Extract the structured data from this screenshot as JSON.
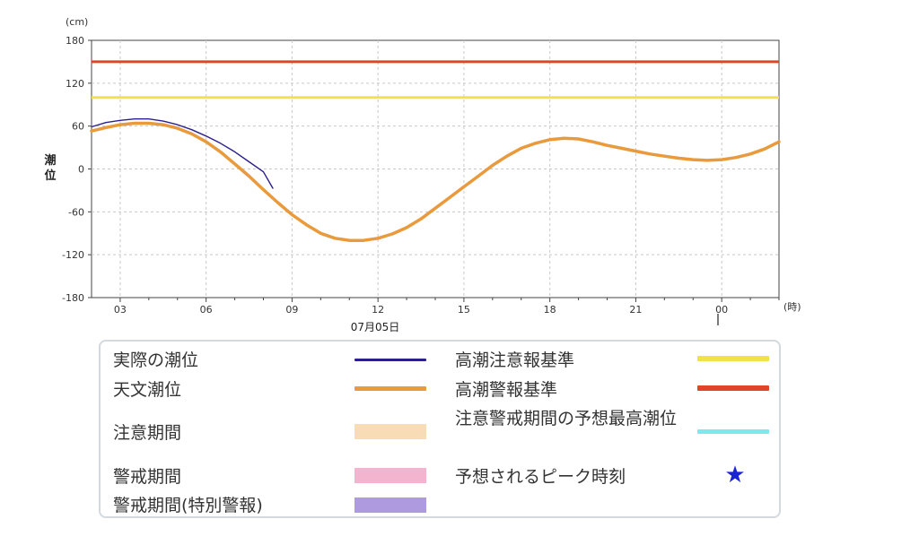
{
  "chart_data": {
    "type": "line",
    "ylim": [
      -180,
      180
    ],
    "yticks": [
      "180",
      "120",
      "60",
      "0",
      "-60",
      "-120",
      "-180"
    ],
    "xticks": [
      "03",
      "06",
      "09",
      "12",
      "15",
      "18",
      "21",
      "00"
    ],
    "date_label": "07月05日",
    "y_unit": "(cm)",
    "x_unit": "(時)",
    "ylabel": "潮位",
    "grid": true,
    "series": [
      {
        "name": "実際の潮位",
        "color": "#2b1f8f",
        "x": [
          2.0,
          2.5,
          3.0,
          3.5,
          4.0,
          4.5,
          5.0,
          5.5,
          6.0,
          6.5,
          7.0,
          7.5,
          8.0,
          8.33
        ],
        "y": [
          59,
          65,
          68,
          70,
          70,
          67,
          62,
          55,
          46,
          36,
          24,
          10,
          -4,
          -27
        ]
      },
      {
        "name": "天文潮位",
        "color": "#e89a3c",
        "x": [
          2.0,
          2.5,
          3.0,
          3.5,
          4.0,
          4.5,
          5.0,
          5.5,
          6.0,
          6.5,
          7.0,
          7.5,
          8.0,
          8.5,
          9.0,
          9.5,
          10.0,
          10.5,
          11.0,
          11.5,
          12.0,
          12.5,
          13.0,
          13.5,
          14.0,
          14.5,
          15.0,
          15.5,
          16.0,
          16.5,
          17.0,
          17.5,
          18.0,
          18.5,
          19.0,
          19.5,
          20.0,
          20.5,
          21.0,
          21.5,
          22.0,
          22.5,
          23.0,
          23.5,
          24.0,
          24.5,
          25.0,
          25.5,
          26.0
        ],
        "y": [
          53,
          58,
          62,
          64,
          64,
          62,
          57,
          49,
          38,
          24,
          7,
          -10,
          -29,
          -47,
          -64,
          -78,
          -90,
          -97,
          -100,
          -100,
          -97,
          -91,
          -82,
          -70,
          -55,
          -40,
          -25,
          -10,
          5,
          18,
          29,
          36,
          41,
          43,
          42,
          38,
          33,
          29,
          25,
          21,
          18,
          15,
          13,
          12,
          13,
          16,
          21,
          28,
          38
        ]
      },
      {
        "name": "高潮注意報基準",
        "color": "#f2e24a",
        "value": 100
      },
      {
        "name": "高潮警報基準",
        "color": "#e0452a",
        "value": 150
      }
    ]
  },
  "legend": {
    "left": [
      {
        "label": "実際の潮位",
        "kind": "line",
        "color": "#2b1f8f"
      },
      {
        "label": "天文潮位",
        "kind": "line",
        "color": "#e89a3c"
      },
      {
        "label": "注意期間",
        "kind": "box",
        "color": "#f8dcb6"
      },
      {
        "label": "警戒期間",
        "kind": "box",
        "color": "#f2b4cf"
      },
      {
        "label": "警戒期間(特別警報)",
        "kind": "box",
        "color": "#ae9bdf"
      }
    ],
    "right": [
      {
        "label": "高潮注意報基準",
        "kind": "line",
        "color": "#f2e24a"
      },
      {
        "label": "高潮警報基準",
        "kind": "line",
        "color": "#e0452a"
      },
      {
        "label": "注意警戒期間の予想最高潮位",
        "kind": "line",
        "color": "#7ee8ee"
      },
      {
        "label": "予想されるピーク時刻",
        "kind": "star",
        "color": "#1a24d6"
      }
    ]
  }
}
